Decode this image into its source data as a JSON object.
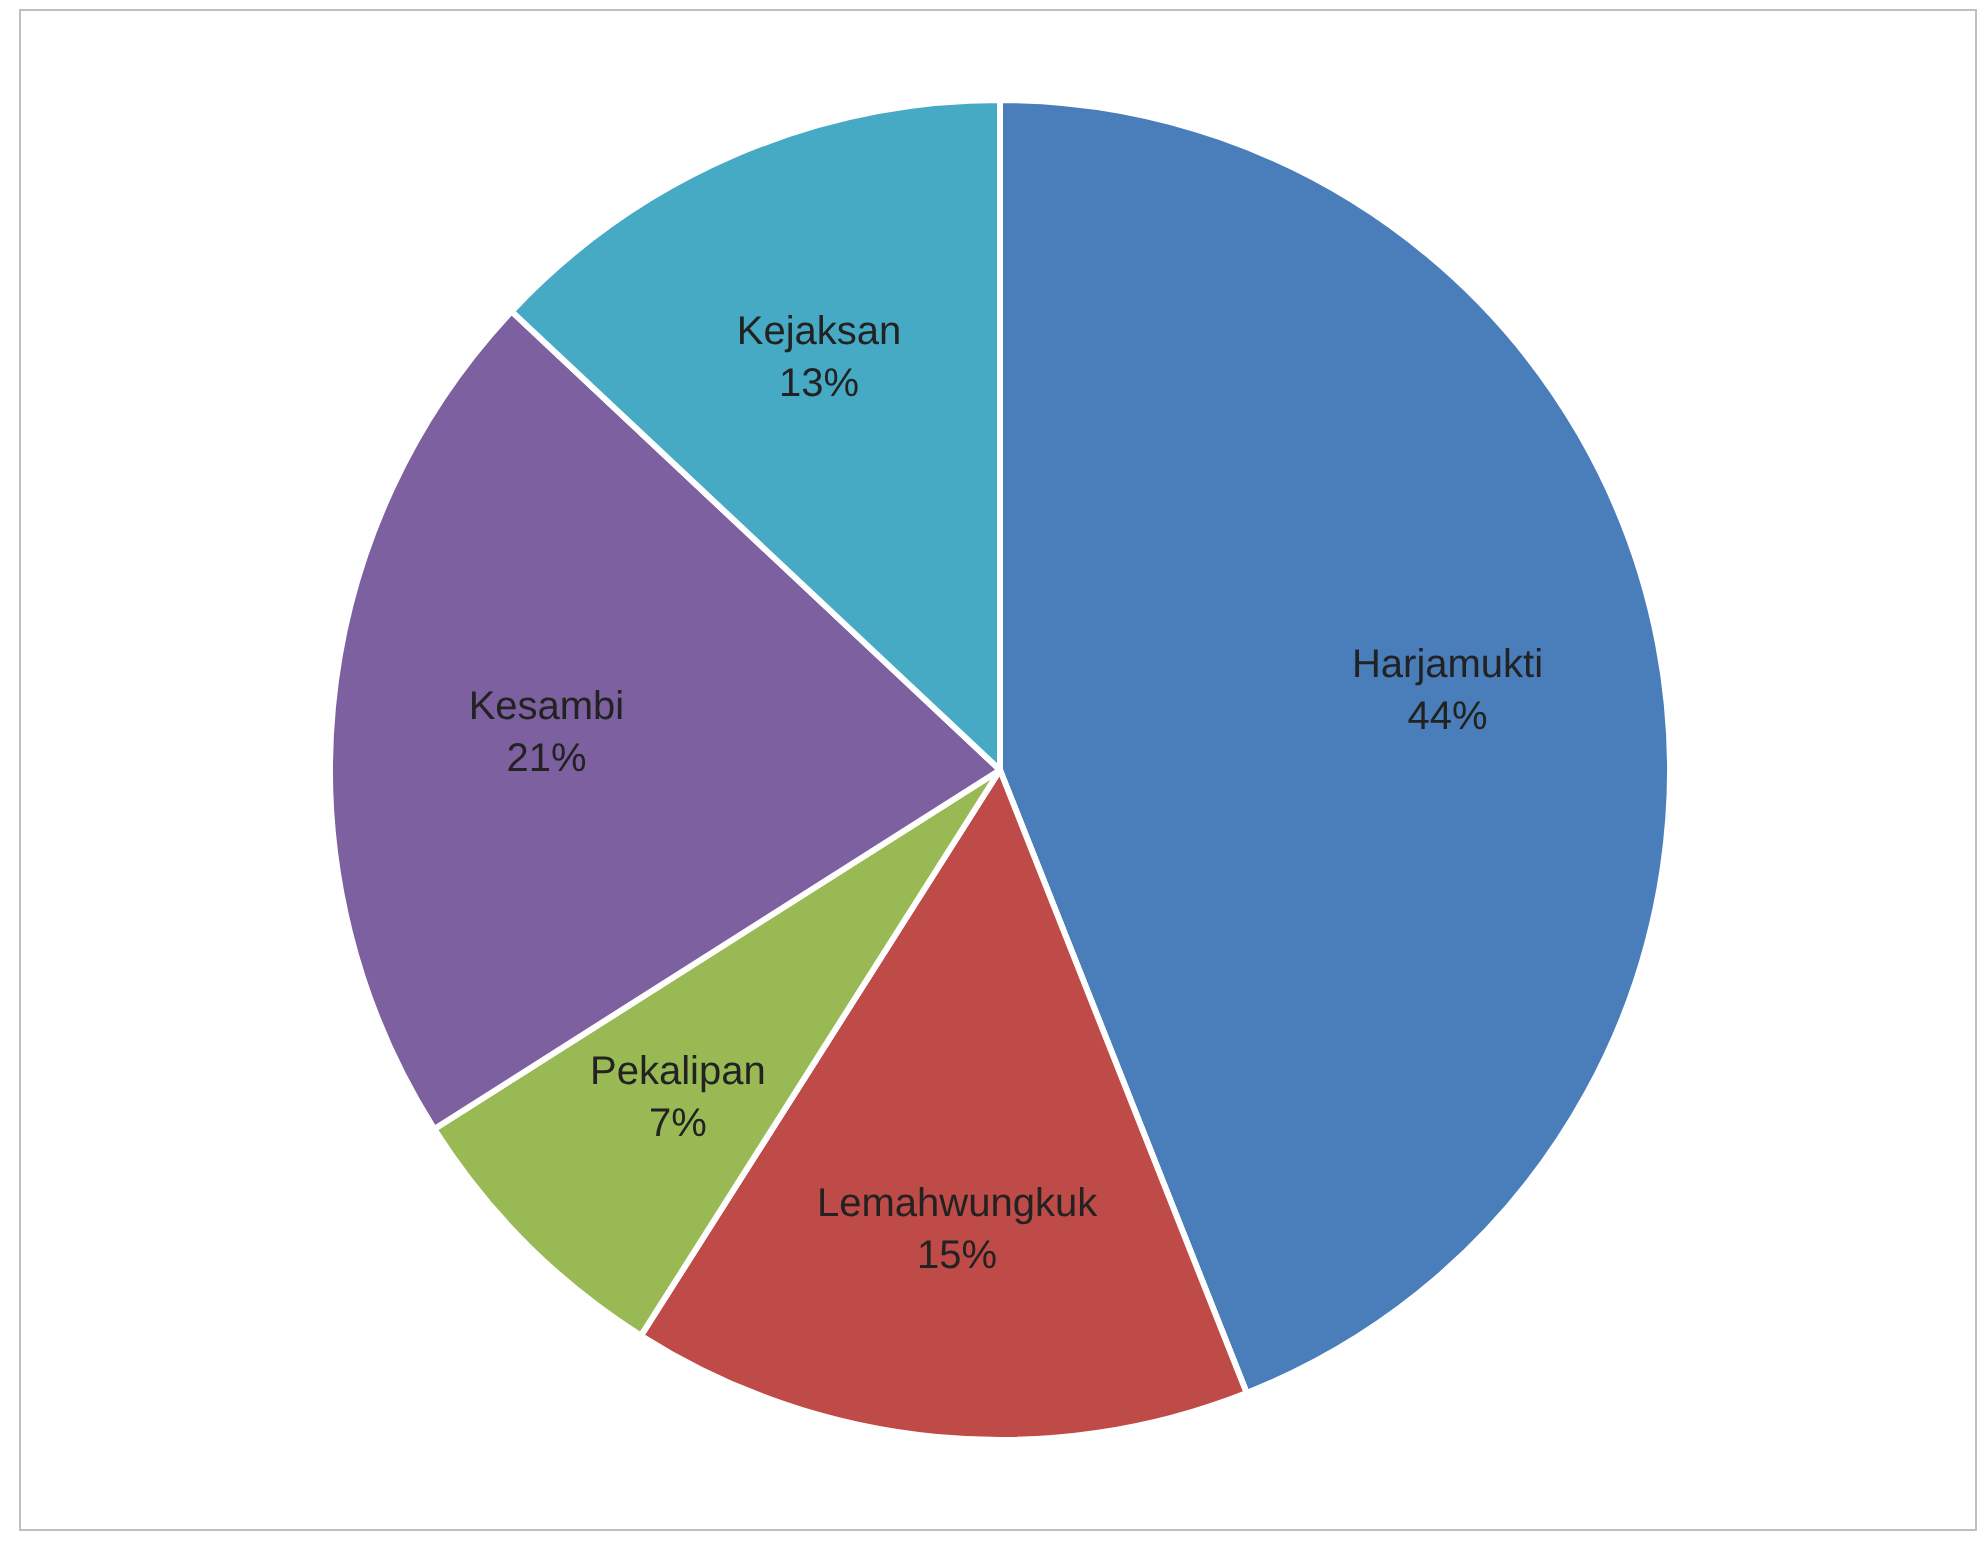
{
  "chart_data": {
    "type": "pie",
    "categories": [
      "Harjamukti",
      "Lemahwungkuk",
      "Pekalipan",
      "Kesambi",
      "Kejaksan"
    ],
    "values": [
      44,
      15,
      7,
      21,
      13
    ],
    "colors": [
      "#4a7ebb",
      "#be4b48",
      "#98b954",
      "#7d60a0",
      "#46aac5"
    ],
    "value_labels": [
      "44%",
      "15%",
      "7%",
      "21%",
      "13%"
    ]
  }
}
